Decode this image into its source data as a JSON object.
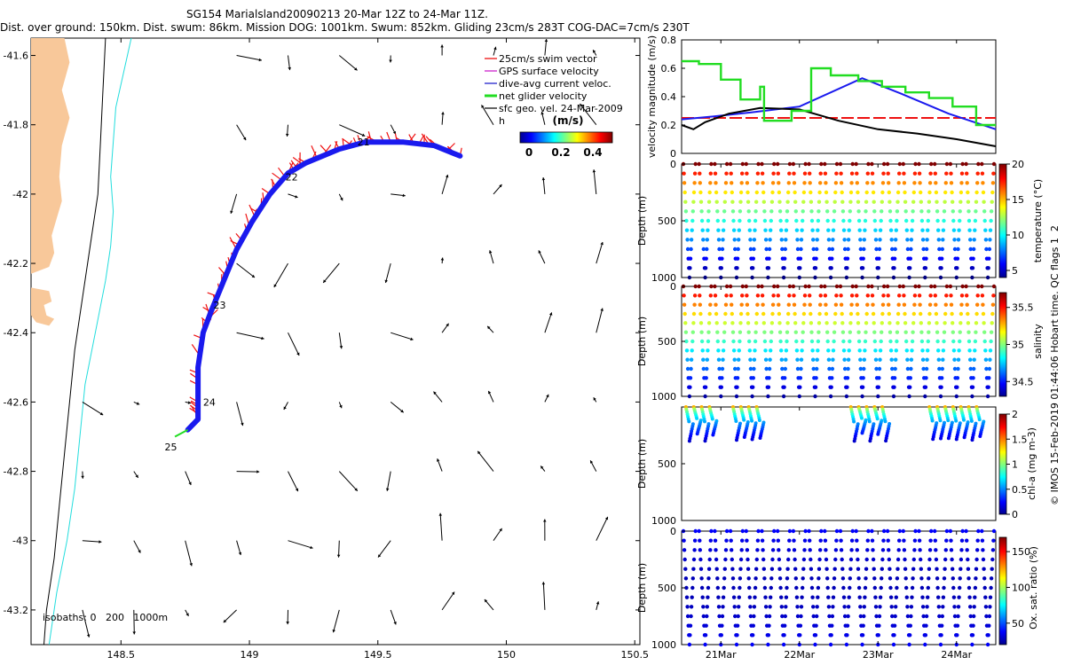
{
  "header": {
    "line1": "SG154 Marialsland20090213 20-Mar 12Z to 24-Mar 11Z.",
    "line2": "Dist. over ground: 150km. Dist. swum: 86km. Mission DOG: 1001km. Swum: 852km. Gliding 23cm/s 283T COG-DAC=7cm/s 230T"
  },
  "footer_credit": "© IMOS 15-Feb-2019 01:44:06 Hobart time. QC flags 1  2",
  "colors": {
    "land": "#f8c89a",
    "track": "#1a1aee",
    "swim": "#ee1111",
    "gps": "#cc22cc",
    "dac": "#2222cc",
    "net": "#22dd22",
    "isobath_200": "#22dddd"
  },
  "chart_data": [
    {
      "type": "map",
      "id": "track-map",
      "xlim": [
        148.15,
        150.52
      ],
      "ylim": [
        -43.3,
        -41.55
      ],
      "xticks": [
        "148.5",
        "149",
        "149.5",
        "150",
        "150.5"
      ],
      "yticks": [
        "-41.6",
        "-41.8",
        "-42",
        "-42.2",
        "-42.4",
        "-42.6",
        "-42.8",
        "-43",
        "-43.2"
      ],
      "isobath_label": "isobaths: 0   200   1000m",
      "h_label": "h",
      "legend": {
        "entries": [
          "25cm/s swim vector",
          "GPS surface velocity",
          "dive-avg current veloc.",
          "net glider velocity",
          "sfc geo. vel. 24-Mar-2009"
        ],
        "colorbar_title": "(m/s)",
        "colorbar_ticks": [
          "0",
          "0.2",
          "0.4"
        ]
      },
      "track": [
        [
          149.82,
          -41.89
        ],
        [
          149.72,
          -41.86
        ],
        [
          149.6,
          -41.85
        ],
        [
          149.45,
          -41.85
        ],
        [
          149.35,
          -41.87
        ],
        [
          149.22,
          -41.91
        ],
        [
          149.15,
          -41.94
        ],
        [
          149.08,
          -42.0
        ],
        [
          149.01,
          -42.08
        ],
        [
          148.95,
          -42.16
        ],
        [
          148.9,
          -42.25
        ],
        [
          148.85,
          -42.34
        ],
        [
          148.82,
          -42.4
        ],
        [
          148.8,
          -42.5
        ],
        [
          148.8,
          -42.6
        ],
        [
          148.8,
          -42.65
        ],
        [
          148.76,
          -42.68
        ],
        [
          148.71,
          -42.7
        ]
      ],
      "day_labels": [
        {
          "text": "21",
          "lon": 149.42,
          "lat": -41.86
        },
        {
          "text": "22",
          "lon": 149.14,
          "lat": -41.96
        },
        {
          "text": "23",
          "lon": 148.86,
          "lat": -42.33
        },
        {
          "text": "24",
          "lon": 148.82,
          "lat": -42.61
        },
        {
          "text": "25",
          "lon": 148.67,
          "lat": -42.74
        }
      ],
      "coast_main": [
        [
          148.28,
          -41.55
        ],
        [
          148.3,
          -41.62
        ],
        [
          148.27,
          -41.7
        ],
        [
          148.3,
          -41.78
        ],
        [
          148.27,
          -41.86
        ],
        [
          148.26,
          -41.95
        ],
        [
          148.27,
          -42.02
        ],
        [
          148.25,
          -42.07
        ],
        [
          148.23,
          -42.12
        ],
        [
          148.24,
          -42.17
        ],
        [
          148.22,
          -42.21
        ],
        [
          148.15,
          -42.23
        ]
      ],
      "coast_peninsula": [
        [
          148.15,
          -42.27
        ],
        [
          148.22,
          -42.28
        ],
        [
          148.23,
          -42.31
        ],
        [
          148.2,
          -42.32
        ],
        [
          148.21,
          -42.35
        ],
        [
          148.24,
          -42.36
        ],
        [
          148.22,
          -42.38
        ],
        [
          148.17,
          -42.37
        ],
        [
          148.15,
          -42.35
        ]
      ],
      "isobath_1000": [
        [
          148.44,
          -41.55
        ],
        [
          148.43,
          -41.7
        ],
        [
          148.42,
          -41.85
        ],
        [
          148.41,
          -42.0
        ],
        [
          148.38,
          -42.15
        ],
        [
          148.35,
          -42.3
        ],
        [
          148.32,
          -42.45
        ],
        [
          148.3,
          -42.6
        ],
        [
          148.28,
          -42.75
        ],
        [
          148.26,
          -42.9
        ],
        [
          148.24,
          -43.05
        ],
        [
          148.21,
          -43.2
        ],
        [
          148.2,
          -43.3
        ]
      ],
      "isobath_200": [
        [
          148.54,
          -41.55
        ],
        [
          148.51,
          -41.65
        ],
        [
          148.48,
          -41.75
        ],
        [
          148.47,
          -41.85
        ],
        [
          148.46,
          -41.95
        ],
        [
          148.47,
          -42.05
        ],
        [
          148.46,
          -42.15
        ],
        [
          148.44,
          -42.25
        ],
        [
          148.4,
          -42.4
        ],
        [
          148.36,
          -42.55
        ],
        [
          148.34,
          -42.7
        ],
        [
          148.32,
          -42.85
        ],
        [
          148.29,
          -43.0
        ],
        [
          148.25,
          -43.15
        ],
        [
          148.22,
          -43.3
        ]
      ]
    },
    {
      "type": "line",
      "id": "velocity-panel",
      "ylabel": "velocity magnitude (m/s)",
      "xlim": [
        0,
        4
      ],
      "ylim": [
        0,
        0.8
      ],
      "yticks": [
        "0",
        "0.2",
        "0.4",
        "0.6",
        "0.8"
      ],
      "series": [
        {
          "name": "swim",
          "color": "#ee1111",
          "style": "dash",
          "x": [
            0,
            4
          ],
          "y": [
            0.25,
            0.25
          ]
        },
        {
          "name": "dac",
          "color": "#1a1aee",
          "x": [
            0,
            0.4,
            0.9,
            1.5,
            2.3,
            2.8,
            3.4,
            4.0
          ],
          "y": [
            0.24,
            0.26,
            0.29,
            0.33,
            0.53,
            0.42,
            0.28,
            0.17
          ]
        },
        {
          "name": "surface geostrophic",
          "color": "#000000",
          "x": [
            0,
            0.15,
            0.3,
            0.6,
            1.0,
            1.5,
            2.0,
            2.5,
            3.0,
            3.5,
            4.0
          ],
          "y": [
            0.2,
            0.17,
            0.22,
            0.28,
            0.32,
            0.31,
            0.23,
            0.17,
            0.14,
            0.1,
            0.05
          ]
        },
        {
          "name": "net glider",
          "color": "#22dd22",
          "x": [
            0,
            0.22,
            0.22,
            0.5,
            0.5,
            0.75,
            0.75,
            1.0,
            1.0,
            1.05,
            1.05,
            1.4,
            1.4,
            1.65,
            1.65,
            1.9,
            1.9,
            2.25,
            2.25,
            2.55,
            2.55,
            2.85,
            2.85,
            3.15,
            3.15,
            3.45,
            3.45,
            3.75,
            3.75,
            4.0
          ],
          "y": [
            0.65,
            0.65,
            0.63,
            0.63,
            0.52,
            0.52,
            0.38,
            0.38,
            0.47,
            0.47,
            0.23,
            0.23,
            0.3,
            0.3,
            0.6,
            0.6,
            0.55,
            0.55,
            0.51,
            0.51,
            0.47,
            0.47,
            0.43,
            0.43,
            0.39,
            0.39,
            0.33,
            0.33,
            0.2,
            0.2
          ]
        }
      ]
    },
    {
      "type": "scatter",
      "id": "temperature-panel",
      "ylabel": "Depth (m)",
      "colorbar_label": "temperature (°C)",
      "colorbar_ticks": [
        "5",
        "10",
        "15",
        "20"
      ],
      "clim": [
        4,
        20
      ],
      "ylim": [
        1000,
        0
      ],
      "yticks": [
        "0",
        "500",
        "1000"
      ],
      "cycles": 20,
      "max_depth": 1000,
      "pattern": "full",
      "surface_value": 20,
      "deep_value": 4
    },
    {
      "type": "scatter",
      "id": "salinity-panel",
      "ylabel": "Depth (m)",
      "colorbar_label": "salinity",
      "colorbar_ticks": [
        "34.5",
        "35",
        "35.5"
      ],
      "clim": [
        34.3,
        35.7
      ],
      "ylim": [
        1000,
        0
      ],
      "yticks": [
        "0",
        "500",
        "1000"
      ],
      "cycles": 20,
      "max_depth": 1000,
      "pattern": "full",
      "surface_value": 35.7,
      "deep_value": 34.35
    },
    {
      "type": "scatter",
      "id": "chla-panel",
      "ylabel": "Depth (m)",
      "colorbar_label": "chl-a (mg m-3)",
      "colorbar_ticks": [
        "0",
        "0.5",
        "1",
        "1.5",
        "2"
      ],
      "clim": [
        0,
        2
      ],
      "ylim": [
        1000,
        0
      ],
      "yticks": [
        "500",
        "1000"
      ],
      "pattern": "shallow",
      "bursts": [
        0.5,
        1,
        1.5,
        2,
        3.5,
        4,
        4.5,
        5,
        11,
        11.5,
        12,
        12.5,
        13,
        16,
        16.5,
        17,
        17.5,
        18,
        18.5,
        19
      ],
      "max_depth": 300,
      "surface_value": 1.4,
      "deep_value": 0.15
    },
    {
      "type": "scatter",
      "id": "oxygen-panel",
      "ylabel": "Depth (m)",
      "colorbar_label": "Ox. sat. ratio (%)",
      "colorbar_ticks": [
        "50",
        "100",
        "150"
      ],
      "clim": [
        20,
        170
      ],
      "ylim": [
        1000,
        0
      ],
      "yticks": [
        "0",
        "500",
        "1000"
      ],
      "cycles": 20,
      "max_depth": 1000,
      "pattern": "full",
      "surface_value": 38,
      "deep_value": 32
    },
    {
      "type": "axis",
      "id": "time-axis",
      "xlim": [
        0,
        4
      ],
      "xticks": [
        "21Mar",
        "22Mar",
        "23Mar",
        "24Mar"
      ]
    }
  ]
}
